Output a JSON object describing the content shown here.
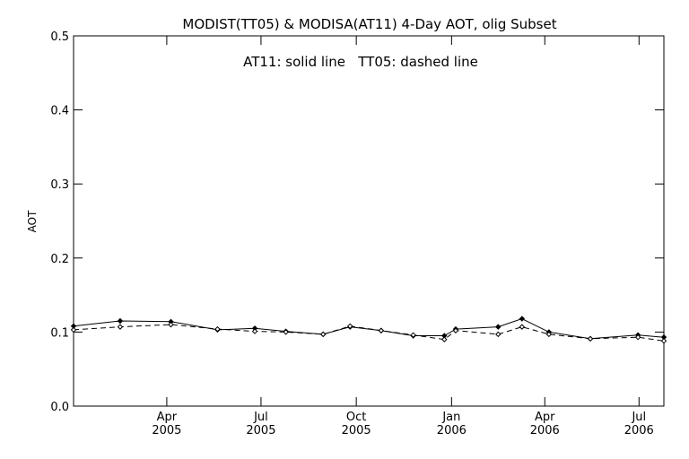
{
  "chart_data": {
    "type": "line",
    "title": "MODIST(TT05) & MODISA(AT11) 4-Day AOT, olig Subset",
    "annotation": "AT11: solid line   TT05: dashed line",
    "xlabel": "",
    "ylabel": "AOT",
    "xlim": [
      "2005-01-01",
      "2006-07-25"
    ],
    "ylim": [
      0,
      0.5
    ],
    "yticks": [
      "0.0",
      "0.1",
      "0.2",
      "0.3",
      "0.4",
      "0.5"
    ],
    "xticks": [
      {
        "date": "2005-04-01",
        "month": "Apr",
        "year": "2005"
      },
      {
        "date": "2005-07-01",
        "month": "Jul",
        "year": "2005"
      },
      {
        "date": "2005-10-01",
        "month": "Oct",
        "year": "2005"
      },
      {
        "date": "2006-01-01",
        "month": "Jan",
        "year": "2006"
      },
      {
        "date": "2006-04-01",
        "month": "Apr",
        "year": "2006"
      },
      {
        "date": "2006-07-01",
        "month": "Jul",
        "year": "2006"
      }
    ],
    "grid": false,
    "series": [
      {
        "name": "AT11",
        "style": "solid",
        "x": [
          "2005-01-01",
          "2005-02-15",
          "2005-04-05",
          "2005-05-20",
          "2005-06-25",
          "2005-07-25",
          "2005-08-30",
          "2005-09-25",
          "2005-10-25",
          "2005-11-25",
          "2005-12-25",
          "2006-01-05",
          "2006-02-15",
          "2006-03-10",
          "2006-04-05",
          "2006-05-15",
          "2006-06-30",
          "2006-07-25"
        ],
        "y": [
          0.108,
          0.115,
          0.114,
          0.103,
          0.105,
          0.101,
          0.097,
          0.107,
          0.102,
          0.095,
          0.095,
          0.104,
          0.107,
          0.118,
          0.1,
          0.091,
          0.096,
          0.093
        ]
      },
      {
        "name": "TT05",
        "style": "dashed",
        "x": [
          "2005-01-01",
          "2005-02-15",
          "2005-04-05",
          "2005-05-20",
          "2005-06-25",
          "2005-07-25",
          "2005-08-30",
          "2005-09-25",
          "2005-10-25",
          "2005-11-25",
          "2005-12-25",
          "2006-01-05",
          "2006-02-15",
          "2006-03-10",
          "2006-04-05",
          "2006-05-15",
          "2006-06-30",
          "2006-07-25"
        ],
        "y": [
          0.103,
          0.107,
          0.11,
          0.104,
          0.101,
          0.1,
          0.097,
          0.108,
          0.102,
          0.096,
          0.09,
          0.102,
          0.097,
          0.107,
          0.097,
          0.091,
          0.093,
          0.088
        ]
      }
    ]
  }
}
